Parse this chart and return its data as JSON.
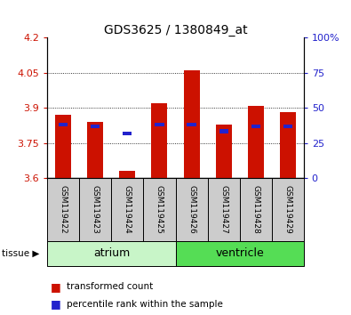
{
  "title": "GDS3625 / 1380849_at",
  "samples": [
    "GSM119422",
    "GSM119423",
    "GSM119424",
    "GSM119425",
    "GSM119426",
    "GSM119427",
    "GSM119428",
    "GSM119429"
  ],
  "red_values": [
    3.87,
    3.84,
    3.63,
    3.92,
    4.06,
    3.83,
    3.91,
    3.88
  ],
  "blue_values": [
    3.83,
    3.82,
    3.79,
    3.83,
    3.83,
    3.8,
    3.82,
    3.82
  ],
  "red_base": 3.6,
  "ylim": [
    3.6,
    4.2
  ],
  "yticks": [
    3.6,
    3.75,
    3.9,
    4.05,
    4.2
  ],
  "right_yticks_pct": [
    0,
    25,
    50,
    75,
    100
  ],
  "right_ylabels": [
    "0",
    "25",
    "50",
    "75",
    "100%"
  ],
  "groups": [
    {
      "label": "atrium",
      "start": 0,
      "end": 4,
      "color": "#c8f5c8"
    },
    {
      "label": "ventricle",
      "start": 4,
      "end": 8,
      "color": "#55dd55"
    }
  ],
  "red_color": "#cc1100",
  "blue_color": "#2222cc",
  "bar_bg": "#cccccc",
  "legend_red": "transformed count",
  "legend_blue": "percentile rank within the sample"
}
